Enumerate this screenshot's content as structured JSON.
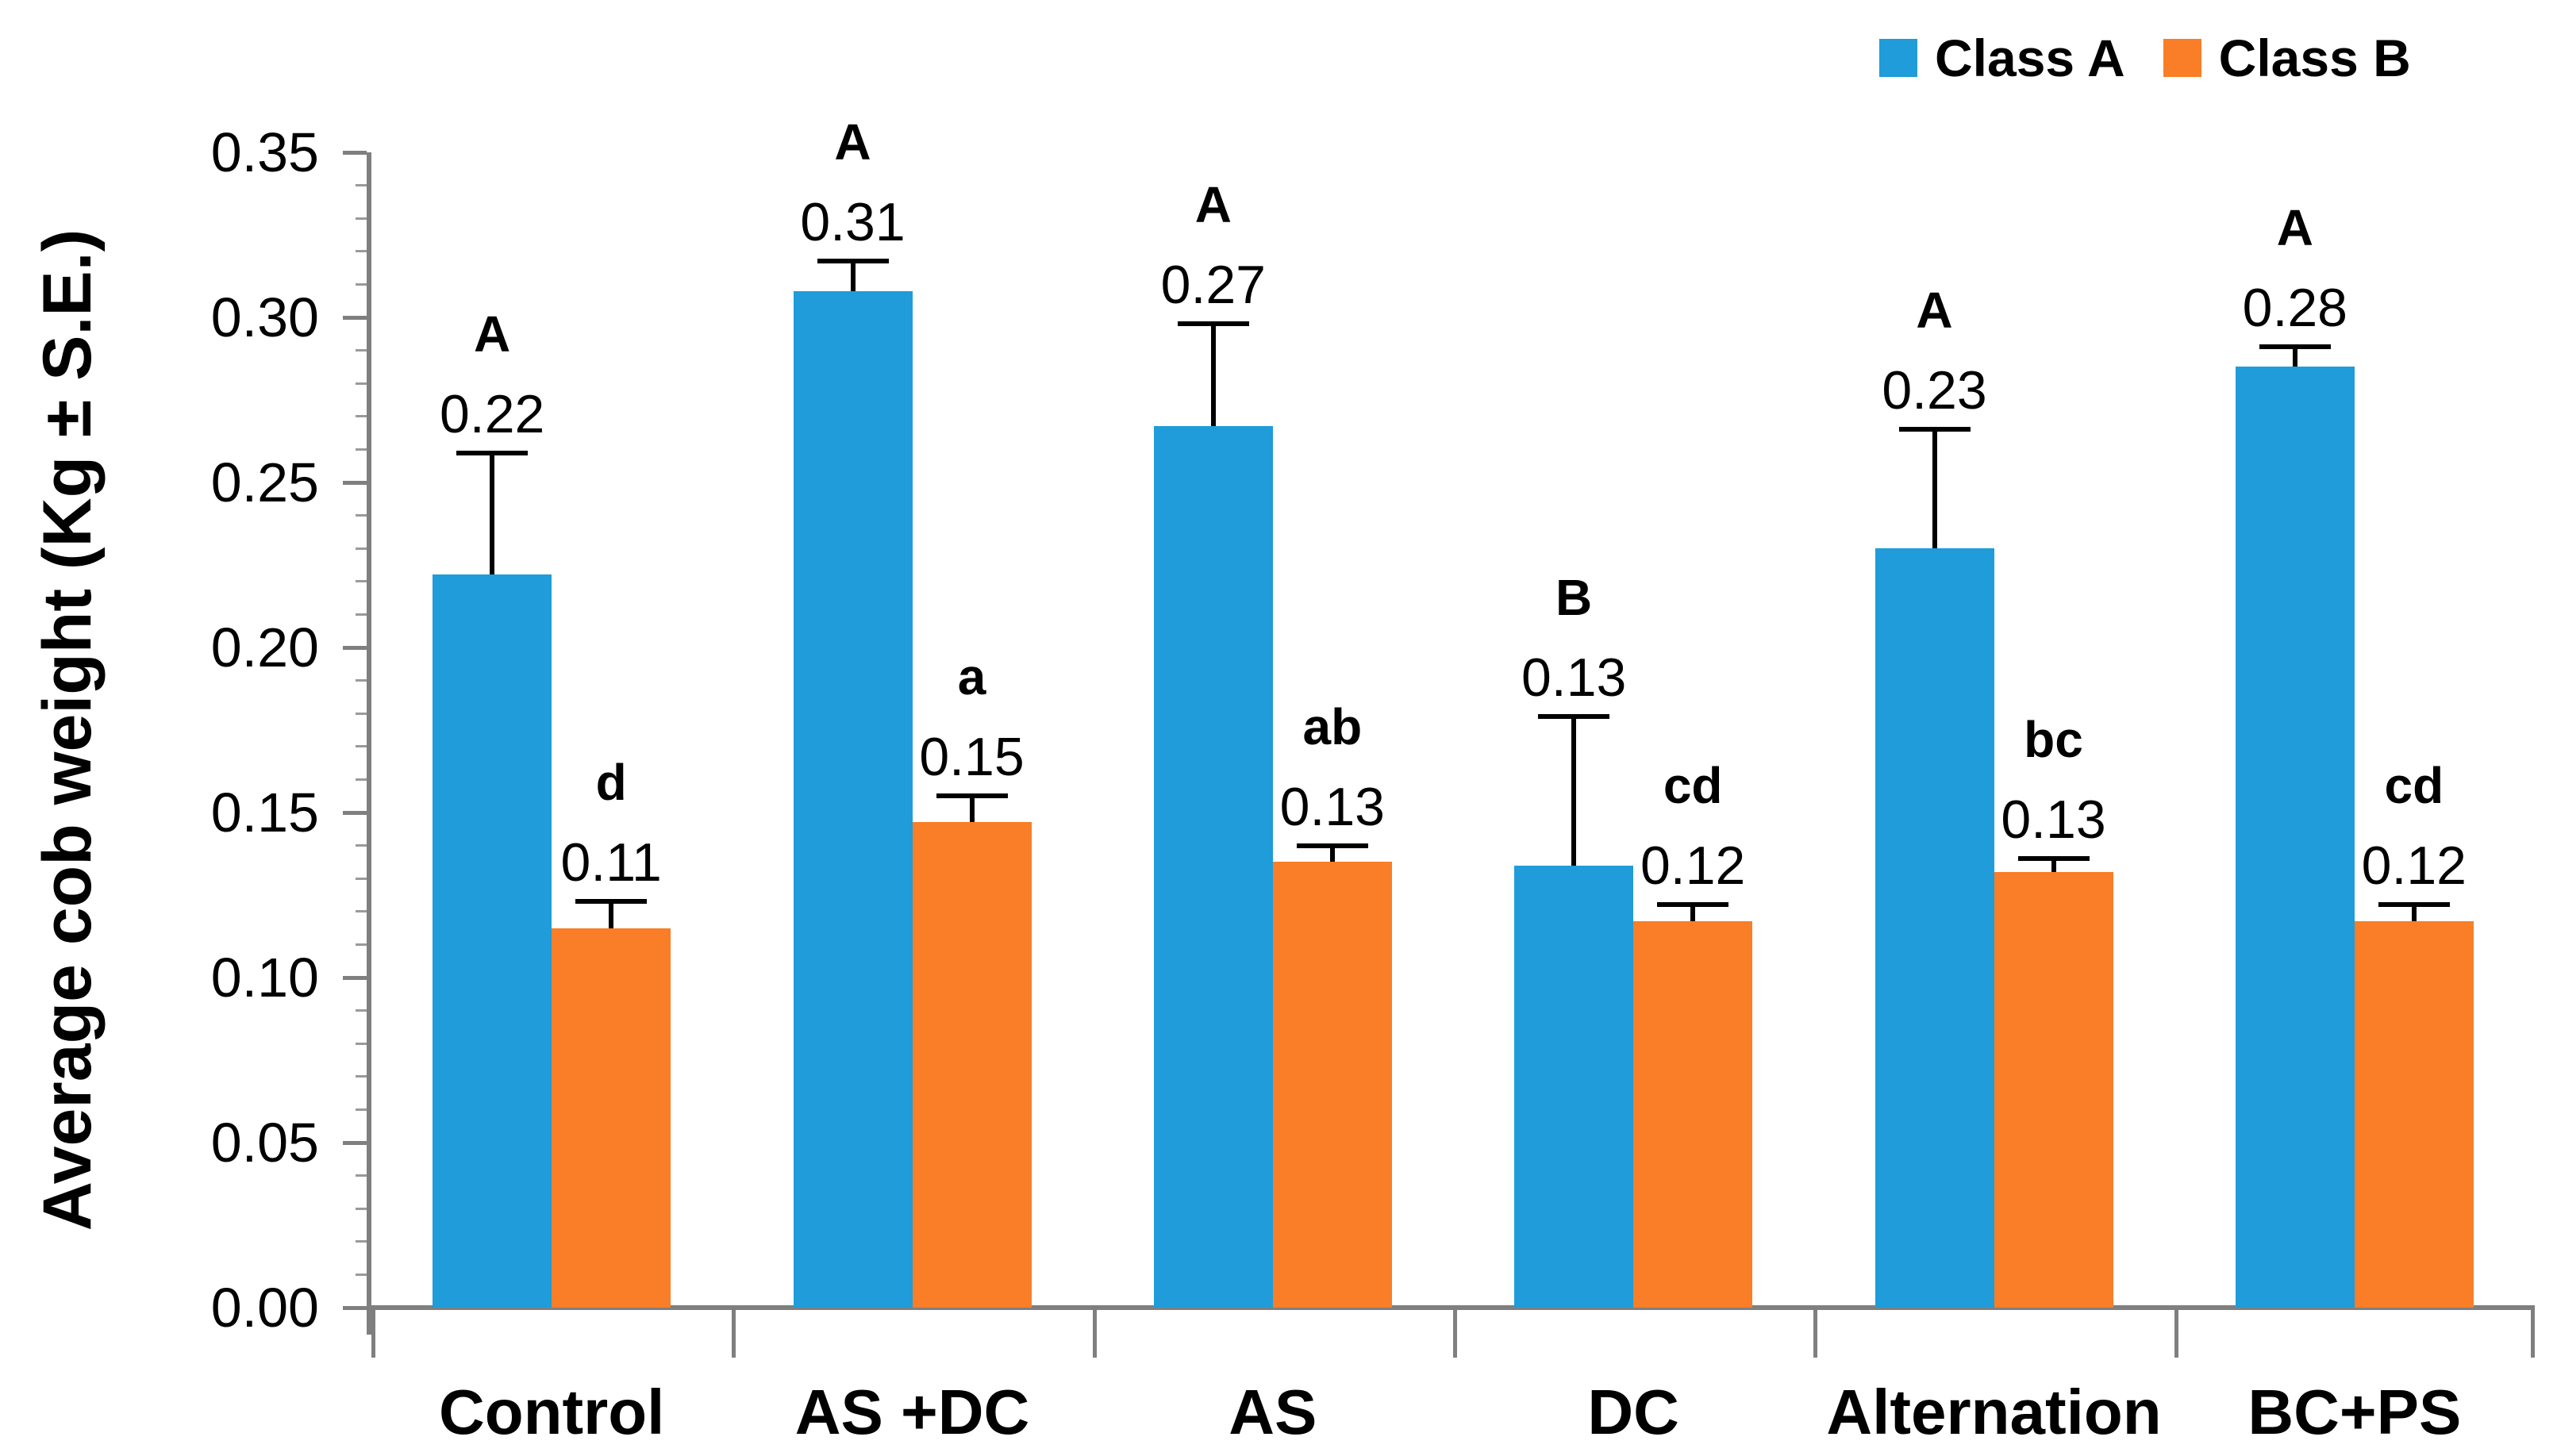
{
  "chart_data": {
    "type": "bar",
    "title": "",
    "xlabel": "",
    "ylabel": "Average cob weight (Kg ± S.E.)",
    "ylim": [
      0,
      0.35
    ],
    "ytick_step": 0.05,
    "y_tick_labels": [
      "0.00",
      "0.05",
      "0.10",
      "0.15",
      "0.20",
      "0.25",
      "0.30",
      "0.35"
    ],
    "grid": false,
    "legend_position": "top-right",
    "categories": [
      "Control",
      "AS +DC",
      "AS",
      "DC",
      "Alternation",
      "BC+PS"
    ],
    "series": [
      {
        "name": "Class A",
        "color": "#1F9CD9",
        "values": [
          0.222,
          0.308,
          0.267,
          0.134,
          0.23,
          0.285
        ],
        "errors_plus": [
          0.037,
          0.009,
          0.031,
          0.045,
          0.036,
          0.006
        ],
        "value_labels": [
          "0.22",
          "0.31",
          "0.27",
          "0.13",
          "0.23",
          "0.28"
        ],
        "sig_letters": [
          "A",
          "A",
          "A",
          "B",
          "A",
          "A"
        ]
      },
      {
        "name": "Class B",
        "color": "#F97E27",
        "values": [
          0.115,
          0.147,
          0.135,
          0.117,
          0.132,
          0.117
        ],
        "errors_plus": [
          0.008,
          0.008,
          0.005,
          0.005,
          0.004,
          0.005
        ],
        "value_labels": [
          "0.11",
          "0.15",
          "0.13",
          "0.12",
          "0.13",
          "0.12"
        ],
        "sig_letters": [
          "d",
          "a",
          "ab",
          "cd",
          "bc",
          "cd"
        ]
      }
    ],
    "colors": {
      "axis": "#7f7f7f",
      "error_bar": "#000000",
      "text": "#000000",
      "background": "#ffffff"
    }
  }
}
